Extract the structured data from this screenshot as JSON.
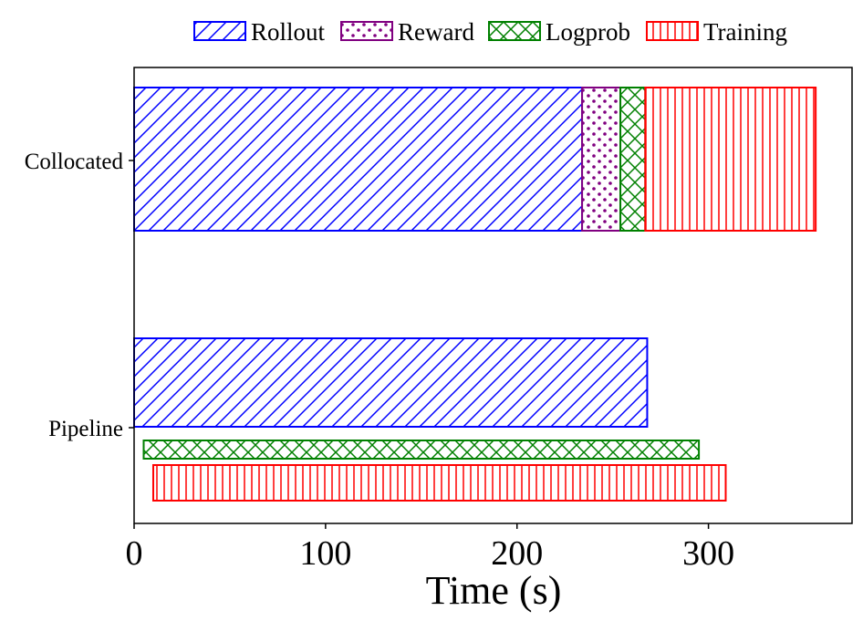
{
  "chart_data": {
    "type": "bar",
    "orientation": "horizontal-stacked",
    "xlabel": "Time (s)",
    "ylabel": "",
    "title": "",
    "xlim": [
      0,
      375
    ],
    "xticks": [
      0,
      100,
      200,
      300
    ],
    "categories": [
      "Collocated",
      "Pipeline"
    ],
    "legend": {
      "placement": "top",
      "entries": [
        {
          "name": "Rollout",
          "color": "#0000ff",
          "hatch": "diagonal"
        },
        {
          "name": "Reward",
          "color": "#800080",
          "hatch": "dots"
        },
        {
          "name": "Logprob",
          "color": "#008000",
          "hatch": "crosshatch"
        },
        {
          "name": "Training",
          "color": "#ff0000",
          "hatch": "vertical"
        }
      ]
    },
    "bars": [
      {
        "category": "Collocated",
        "stage": "Rollout",
        "start": 0,
        "end": 234
      },
      {
        "category": "Collocated",
        "stage": "Reward",
        "start": 234,
        "end": 254
      },
      {
        "category": "Collocated",
        "stage": "Logprob",
        "start": 254,
        "end": 267
      },
      {
        "category": "Collocated",
        "stage": "Training",
        "start": 267,
        "end": 356
      },
      {
        "category": "Pipeline",
        "stage": "Rollout",
        "start": 0,
        "end": 268
      },
      {
        "category": "Pipeline",
        "stage": "Logprob",
        "start": 5,
        "end": 295
      },
      {
        "category": "Pipeline",
        "stage": "Training",
        "start": 10,
        "end": 309
      }
    ]
  }
}
